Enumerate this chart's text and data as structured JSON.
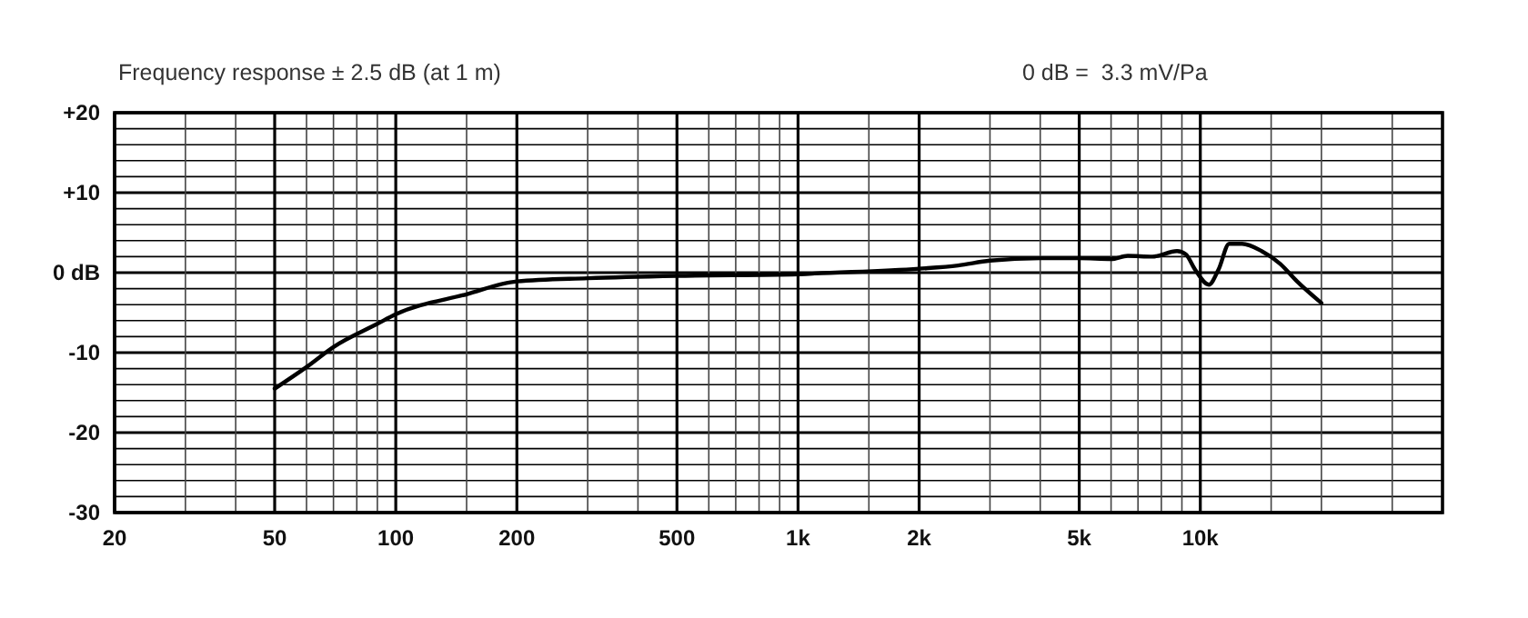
{
  "chart_data": {
    "type": "line",
    "title": "Frequency response ± 2.5 dB (at 1 m)",
    "annotations": [
      "0 dB =  3.3 mV/Pa"
    ],
    "log": "x",
    "grid": true,
    "marker": "none",
    "line_style": "solid",
    "xlim": [
      20,
      40000
    ],
    "ylim": [
      -30,
      20
    ],
    "xticks": [
      20,
      {
        "value": 30,
        "label": null
      },
      {
        "value": 40,
        "label": null
      },
      50,
      {
        "value": 60,
        "label": null
      },
      {
        "value": 70,
        "label": null
      },
      {
        "value": 80,
        "label": null
      },
      {
        "value": 90,
        "label": null
      },
      100,
      {
        "value": 150,
        "label": null
      },
      200,
      {
        "value": 300,
        "label": null
      },
      {
        "value": 400,
        "label": null
      },
      500,
      {
        "value": 600,
        "label": null
      },
      {
        "value": 700,
        "label": null
      },
      {
        "value": 800,
        "label": null
      },
      {
        "value": 900,
        "label": null
      },
      {
        "value": 1000,
        "label": "1k"
      },
      {
        "value": 1500,
        "label": null
      },
      {
        "value": 2000,
        "label": "2k"
      },
      {
        "value": 3000,
        "label": null
      },
      {
        "value": 4000,
        "label": null
      },
      {
        "value": 5000,
        "label": "5k"
      },
      {
        "value": 6000,
        "label": null
      },
      {
        "value": 7000,
        "label": null
      },
      {
        "value": 8000,
        "label": null
      },
      {
        "value": 9000,
        "label": null
      },
      {
        "value": 10000,
        "label": "10k"
      },
      {
        "value": 15000,
        "label": null
      },
      {
        "value": 20000,
        "label": null
      },
      {
        "value": 30000,
        "label": null
      }
    ],
    "yticks": [
      {
        "value": 20,
        "label": "+20"
      },
      {
        "value": 18,
        "label": null
      },
      {
        "value": 16,
        "label": null
      },
      {
        "value": 14,
        "label": null
      },
      {
        "value": 12,
        "label": null
      },
      {
        "value": 10,
        "label": "+10"
      },
      {
        "value": 8,
        "label": null
      },
      {
        "value": 6,
        "label": null
      },
      {
        "value": 4,
        "label": null
      },
      {
        "value": 2,
        "label": null
      },
      {
        "value": 0,
        "label": "0 dB"
      },
      {
        "value": -2,
        "label": null
      },
      {
        "value": -4,
        "label": null
      },
      {
        "value": -6,
        "label": null
      },
      {
        "value": -8,
        "label": null
      },
      {
        "value": -10,
        "label": "-10"
      },
      {
        "value": -12,
        "label": null
      },
      {
        "value": -14,
        "label": null
      },
      {
        "value": -16,
        "label": null
      },
      {
        "value": -18,
        "label": null
      },
      {
        "value": -20,
        "label": "-20"
      },
      {
        "value": -22,
        "label": null
      },
      {
        "value": -24,
        "label": null
      },
      {
        "value": -26,
        "label": null
      },
      {
        "value": -28,
        "label": null
      },
      {
        "value": -30,
        "label": "-30"
      }
    ],
    "series": [
      {
        "color": "#000000",
        "x": [
          50,
          60,
          70,
          90,
          100,
          150,
          200,
          300,
          500,
          1000,
          1100,
          2000,
          2500,
          3000,
          4000,
          5000,
          6000,
          6600,
          7600,
          8750,
          9200,
          9700,
          10500,
          11100,
          11800,
          12700,
          14200,
          15800,
          17400,
          20000
        ],
        "values": [
          -14.5,
          -11.8,
          -9.3,
          -6.4,
          -5.2,
          -2.7,
          -1.1,
          -0.7,
          -0.4,
          -0.2,
          -0.1,
          0.5,
          0.9,
          1.5,
          1.8,
          1.8,
          1.7,
          2.1,
          2.0,
          2.7,
          2.3,
          0.4,
          -1.5,
          0.4,
          3.6,
          3.6,
          2.7,
          1.1,
          -1.1,
          -3.8
        ]
      }
    ]
  }
}
